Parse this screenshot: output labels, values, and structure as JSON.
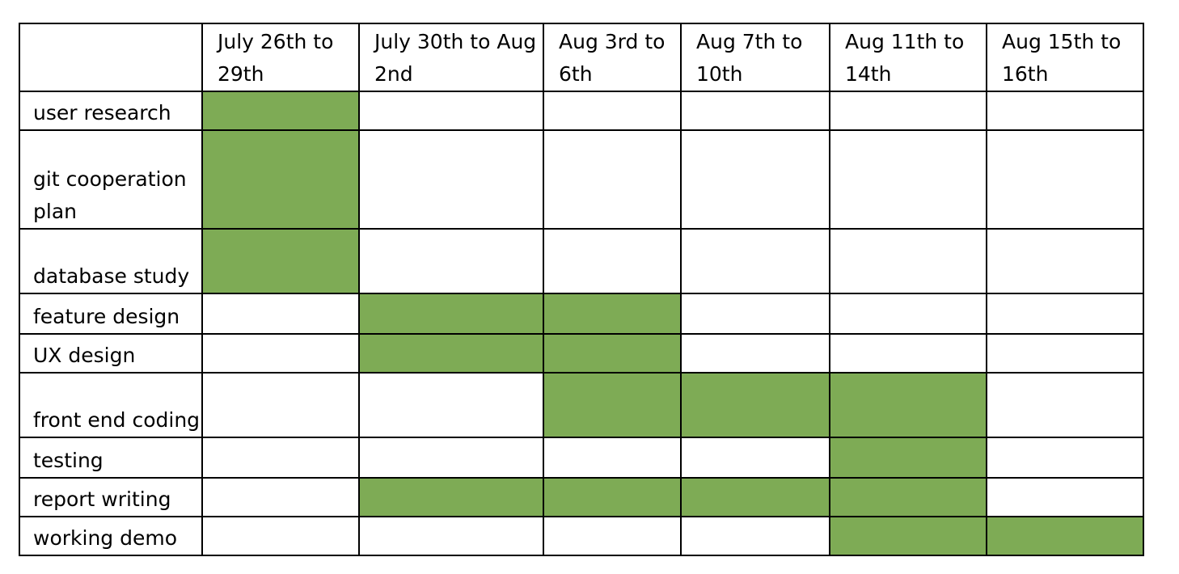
{
  "header": {
    "corner": "",
    "periods": [
      "July 26th to 29th",
      "July 30th to Aug 2nd",
      "Aug 3rd to 6th",
      "Aug 7th to 10th",
      "Aug 11th to 14th",
      "Aug 15th to 16th"
    ]
  },
  "tasks": [
    {
      "name": "user research",
      "active": [
        true,
        false,
        false,
        false,
        false,
        false
      ]
    },
    {
      "name": "git cooperation plan",
      "active": [
        true,
        false,
        false,
        false,
        false,
        false
      ]
    },
    {
      "name": "database study",
      "active": [
        true,
        false,
        false,
        false,
        false,
        false
      ]
    },
    {
      "name": "feature design",
      "active": [
        false,
        true,
        true,
        false,
        false,
        false
      ]
    },
    {
      "name": "UX design",
      "active": [
        false,
        true,
        true,
        false,
        false,
        false
      ]
    },
    {
      "name": "front end coding",
      "active": [
        false,
        false,
        true,
        true,
        true,
        false
      ]
    },
    {
      "name": "testing",
      "active": [
        false,
        false,
        false,
        false,
        true,
        false
      ]
    },
    {
      "name": "report writing",
      "active": [
        false,
        true,
        true,
        true,
        true,
        false
      ]
    },
    {
      "name": "working demo",
      "active": [
        false,
        false,
        false,
        false,
        true,
        true
      ]
    }
  ],
  "colors": {
    "filled": "#7eab55",
    "border": "#000000",
    "background": "#ffffff"
  }
}
